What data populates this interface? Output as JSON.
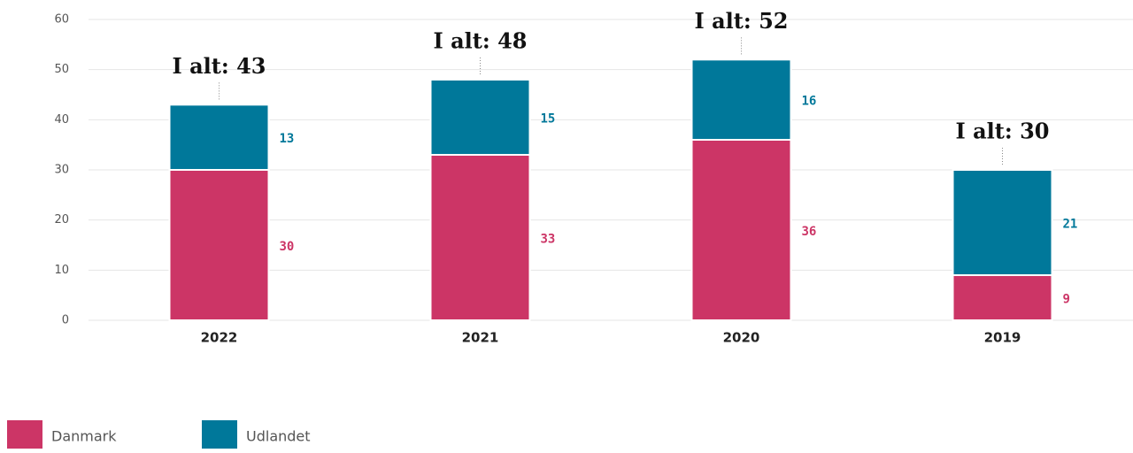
{
  "chart_data": {
    "type": "stacked_bar",
    "categories": [
      "2022",
      "2021",
      "2020",
      "2019"
    ],
    "series": [
      {
        "name": "Danmark",
        "color": "#cc3566",
        "values": [
          30,
          33,
          36,
          9
        ]
      },
      {
        "name": "Udlandet",
        "color": "#00789a",
        "values": [
          13,
          15,
          16,
          21
        ]
      }
    ],
    "annotations": [
      "I alt: 43",
      "I alt: 48",
      "I alt: 52",
      "I alt: 30"
    ],
    "ylim": [
      0,
      60
    ],
    "yticks": [
      0,
      10,
      20,
      30,
      40,
      50,
      60
    ],
    "grid": true,
    "legend": "bottom-left"
  }
}
